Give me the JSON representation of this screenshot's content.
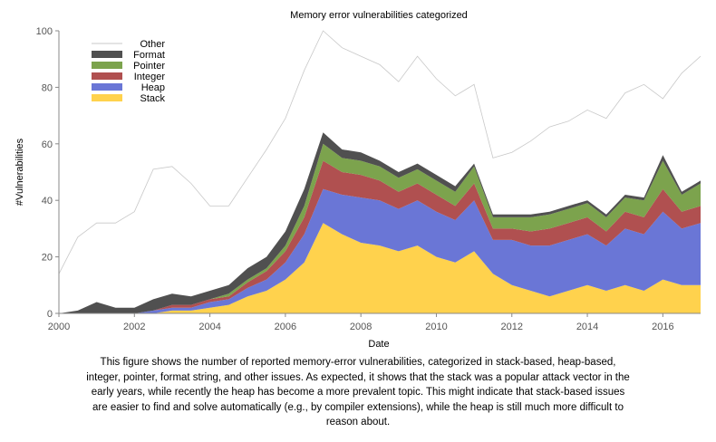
{
  "chart_data": {
    "type": "area",
    "stacked": true,
    "title": "Memory error vulnerabilities categorized",
    "xlabel": "Date",
    "ylabel": "#Vulnerabilities",
    "xlim": [
      2000,
      2017
    ],
    "ylim": [
      0,
      100
    ],
    "xticks": [
      "2000",
      "2002",
      "2004",
      "2006",
      "2008",
      "2010",
      "2012",
      "2014",
      "2016"
    ],
    "yticks": [
      "0",
      "20",
      "40",
      "60",
      "80",
      "100"
    ],
    "grid": false,
    "legend": "top-left",
    "x": [
      2000.0,
      2000.5,
      2001.0,
      2001.5,
      2002.0,
      2002.5,
      2003.0,
      2003.5,
      2004.0,
      2004.5,
      2005.0,
      2005.5,
      2006.0,
      2006.5,
      2007.0,
      2007.5,
      2008.0,
      2008.5,
      2009.0,
      2009.5,
      2010.0,
      2010.5,
      2011.0,
      2011.5,
      2012.0,
      2012.5,
      2013.0,
      2013.5,
      2014.0,
      2014.5,
      2015.0,
      2015.5,
      2016.0,
      2016.5,
      2017.0
    ],
    "series": [
      {
        "name": "Stack",
        "color": "#ffd24d",
        "values": [
          0,
          0,
          0,
          0,
          0,
          0,
          1,
          1,
          2,
          3,
          6,
          8,
          12,
          18,
          32,
          28,
          25,
          24,
          22,
          24,
          20,
          18,
          22,
          14,
          10,
          8,
          6,
          8,
          10,
          8,
          10,
          8,
          12,
          10,
          10
        ]
      },
      {
        "name": "Heap",
        "color": "#6a76d6",
        "values": [
          0,
          0,
          0,
          0,
          0,
          1,
          1,
          1,
          2,
          2,
          3,
          4,
          6,
          10,
          12,
          14,
          16,
          16,
          15,
          16,
          16,
          15,
          18,
          12,
          16,
          16,
          18,
          18,
          18,
          16,
          20,
          20,
          24,
          20,
          22
        ]
      },
      {
        "name": "Integer",
        "color": "#b05050",
        "values": [
          0,
          0,
          0,
          0,
          0,
          0,
          1,
          1,
          1,
          1,
          2,
          3,
          4,
          6,
          10,
          8,
          8,
          7,
          6,
          6,
          6,
          5,
          6,
          4,
          4,
          5,
          6,
          6,
          6,
          5,
          6,
          6,
          8,
          6,
          6
        ]
      },
      {
        "name": "Pointer",
        "color": "#7ca34d",
        "values": [
          0,
          0,
          0,
          0,
          0,
          0,
          0,
          0,
          0,
          1,
          1,
          1,
          2,
          4,
          6,
          5,
          5,
          5,
          5,
          5,
          5,
          5,
          6,
          4,
          4,
          5,
          5,
          5,
          5,
          5,
          5,
          6,
          10,
          6,
          8
        ]
      },
      {
        "name": "Format",
        "color": "#505050",
        "values": [
          0,
          1,
          4,
          2,
          2,
          4,
          4,
          3,
          3,
          3,
          4,
          4,
          5,
          6,
          4,
          3,
          3,
          2,
          2,
          2,
          2,
          2,
          1,
          1,
          1,
          1,
          1,
          1,
          1,
          1,
          1,
          1,
          2,
          1,
          1
        ]
      },
      {
        "name": "Other",
        "color": "#c8c8c8",
        "values": [
          14,
          26,
          28,
          30,
          34,
          46,
          45,
          40,
          30,
          28,
          32,
          38,
          40,
          42,
          38,
          36,
          34,
          34,
          32,
          38,
          34,
          32,
          28,
          20,
          22,
          26,
          30,
          30,
          32,
          34,
          36,
          40,
          20,
          42,
          44
        ]
      }
    ]
  },
  "caption": "This figure shows the number of reported memory-error vulnerabilities, categorized in stack-based, heap-based, integer, pointer, format string, and other issues. As expected, it shows that the stack was a popular attack vector in the early years, while recently the heap has become a more prevalent topic. This might indicate that stack-based issues are easier to find and solve automatically (e.g., by compiler extensions), while the heap is still much more difficult to reason about."
}
